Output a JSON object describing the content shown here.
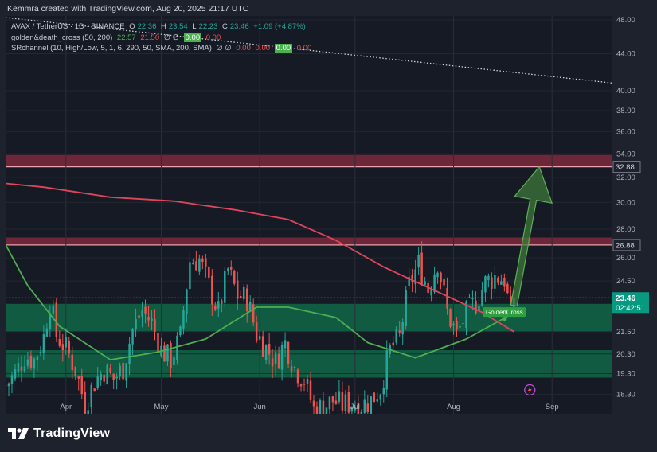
{
  "header": {
    "credit": "Kemmra created with TradingView.com, Aug 20, 2025 21:17 UTC"
  },
  "legend": {
    "symbol": "AVAX / TetherUS · 1D · BINANCE",
    "o_label": "O",
    "o_value": "22.36",
    "h_label": "H",
    "h_value": "23.54",
    "l_label": "L",
    "l_value": "22.23",
    "c_label": "C",
    "c_value": "23.46",
    "change": "+1.09 (+4.87%)",
    "gdc_label": "golden&death_cross (50, 200)",
    "gdc_v1": "22.57",
    "gdc_v2": "21.50",
    "gdc_v3": "∅ ∅",
    "gdc_v4": "0.00",
    "gdc_v5": "0.00",
    "sr_label": "SRchannel (10, High/Low, 5, 1, 6, 290, 50, SMA, 200, SMA)",
    "sr_v1": "∅ ∅",
    "sr_v2": "0.00",
    "sr_v3": "0.00",
    "sr_v4": "0.00",
    "sr_v5": "0.00"
  },
  "annotations": {
    "golden_cross": "GoldenCross",
    "price_tag_top": "32.88",
    "price_tag_mid": "26.88",
    "current_price": "23.46",
    "countdown": "02:42:51"
  },
  "brand": {
    "name": "TradingView"
  },
  "colors": {
    "up": "#26a69a",
    "down": "#ef5350",
    "ma50": "#4caf50",
    "ma200": "#e0455a",
    "zone_red": "#8b2c3f",
    "zone_green": "#0f6b4a",
    "arrow": "#3f7f3a"
  },
  "chart_data": {
    "type": "candlestick",
    "symbol": "AVAX/USDT",
    "interval": "1D",
    "y_scale": "log",
    "ylim": [
      17.4,
      48.5
    ],
    "y_ticks": [
      18.3,
      19.3,
      20.3,
      21.5,
      24.5,
      26.0,
      28.0,
      30.0,
      32.0,
      34.0,
      36.0,
      38.0,
      40.0,
      44.0,
      48.0
    ],
    "y_tick_labels": [
      "18.30",
      "19.30",
      "20.30",
      "21.50",
      "24.50",
      "26.00",
      "28.00",
      "30.00",
      "32.00",
      "34.00",
      "36.00",
      "38.00",
      "40.00",
      "44.00",
      "48.00"
    ],
    "x_range": [
      "2025-03-13",
      "2025-09-20"
    ],
    "x_ticks": [
      {
        "date": "2025-04-01",
        "label": "Apr"
      },
      {
        "date": "2025-05-01",
        "label": "May"
      },
      {
        "date": "2025-06-01",
        "label": "Jun"
      },
      {
        "date": "2025-07-01",
        "label": "Jul"
      },
      {
        "date": "2025-08-01",
        "label": "Aug"
      },
      {
        "date": "2025-09-01",
        "label": "Sep"
      }
    ],
    "closes": [
      {
        "date": "2025-03-13",
        "close": 18.7
      },
      {
        "date": "2025-03-16",
        "close": 19.3
      },
      {
        "date": "2025-03-19",
        "close": 20.2
      },
      {
        "date": "2025-03-22",
        "close": 20.0
      },
      {
        "date": "2025-03-25",
        "close": 21.2
      },
      {
        "date": "2025-03-27",
        "close": 23.3
      },
      {
        "date": "2025-03-29",
        "close": 21.3
      },
      {
        "date": "2025-04-01",
        "close": 20.6
      },
      {
        "date": "2025-04-04",
        "close": 19.5
      },
      {
        "date": "2025-04-07",
        "close": 17.8
      },
      {
        "date": "2025-04-10",
        "close": 18.9
      },
      {
        "date": "2025-04-13",
        "close": 19.5
      },
      {
        "date": "2025-04-16",
        "close": 19.0
      },
      {
        "date": "2025-04-19",
        "close": 19.6
      },
      {
        "date": "2025-04-22",
        "close": 21.6
      },
      {
        "date": "2025-04-25",
        "close": 22.7
      },
      {
        "date": "2025-04-28",
        "close": 22.0
      },
      {
        "date": "2025-05-01",
        "close": 20.5
      },
      {
        "date": "2025-05-04",
        "close": 20.0
      },
      {
        "date": "2025-05-07",
        "close": 21.2
      },
      {
        "date": "2025-05-10",
        "close": 25.8
      },
      {
        "date": "2025-05-13",
        "close": 25.9
      },
      {
        "date": "2025-05-16",
        "close": 24.2
      },
      {
        "date": "2025-05-19",
        "close": 22.6
      },
      {
        "date": "2025-05-22",
        "close": 25.2
      },
      {
        "date": "2025-05-25",
        "close": 23.6
      },
      {
        "date": "2025-05-28",
        "close": 23.4
      },
      {
        "date": "2025-05-31",
        "close": 21.4
      },
      {
        "date": "2025-06-03",
        "close": 20.6
      },
      {
        "date": "2025-06-06",
        "close": 19.9
      },
      {
        "date": "2025-06-09",
        "close": 20.9
      },
      {
        "date": "2025-06-12",
        "close": 19.6
      },
      {
        "date": "2025-06-15",
        "close": 19.0
      },
      {
        "date": "2025-06-18",
        "close": 17.6
      },
      {
        "date": "2025-06-21",
        "close": 17.7
      },
      {
        "date": "2025-06-24",
        "close": 18.0
      },
      {
        "date": "2025-06-27",
        "close": 17.8
      },
      {
        "date": "2025-06-30",
        "close": 17.9
      },
      {
        "date": "2025-07-03",
        "close": 17.8
      },
      {
        "date": "2025-07-06",
        "close": 18.0
      },
      {
        "date": "2025-07-09",
        "close": 18.6
      },
      {
        "date": "2025-07-12",
        "close": 20.5
      },
      {
        "date": "2025-07-15",
        "close": 21.2
      },
      {
        "date": "2025-07-18",
        "close": 24.2
      },
      {
        "date": "2025-07-21",
        "close": 25.6
      },
      {
        "date": "2025-07-24",
        "close": 24.0
      },
      {
        "date": "2025-07-27",
        "close": 25.8
      },
      {
        "date": "2025-07-30",
        "close": 22.6
      },
      {
        "date": "2025-08-02",
        "close": 21.3
      },
      {
        "date": "2025-08-05",
        "close": 22.5
      },
      {
        "date": "2025-08-08",
        "close": 23.2
      },
      {
        "date": "2025-08-11",
        "close": 24.4
      },
      {
        "date": "2025-08-14",
        "close": 24.8
      },
      {
        "date": "2025-08-17",
        "close": 24.6
      },
      {
        "date": "2025-08-19",
        "close": 22.4
      },
      {
        "date": "2025-08-20",
        "close": 23.46
      }
    ],
    "series": [
      {
        "name": "golden&death_cross (50, 200)",
        "type": "line",
        "points": [
          {
            "date": "2025-03-13",
            "value": 26.9
          },
          {
            "date": "2025-03-20",
            "value": 24.2
          },
          {
            "date": "2025-03-30",
            "value": 21.8
          },
          {
            "date": "2025-04-15",
            "value": 20.0
          },
          {
            "date": "2025-04-30",
            "value": 20.4
          },
          {
            "date": "2025-05-15",
            "value": 21.1
          },
          {
            "date": "2025-05-31",
            "value": 22.9
          },
          {
            "date": "2025-06-10",
            "value": 22.9
          },
          {
            "date": "2025-06-25",
            "value": 22.3
          },
          {
            "date": "2025-07-05",
            "value": 20.9
          },
          {
            "date": "2025-07-20",
            "value": 20.1
          },
          {
            "date": "2025-08-05",
            "value": 21.1
          },
          {
            "date": "2025-08-20",
            "value": 22.57
          }
        ]
      },
      {
        "name": "golden&death_cross (50, 200)",
        "type": "line",
        "points": [
          {
            "date": "2025-03-13",
            "value": 31.5
          },
          {
            "date": "2025-03-25",
            "value": 31.2
          },
          {
            "date": "2025-04-15",
            "value": 30.4
          },
          {
            "date": "2025-05-05",
            "value": 30.1
          },
          {
            "date": "2025-05-25",
            "value": 29.4
          },
          {
            "date": "2025-06-10",
            "value": 28.7
          },
          {
            "date": "2025-06-25",
            "value": 27.2
          },
          {
            "date": "2025-07-10",
            "value": 25.4
          },
          {
            "date": "2025-07-25",
            "value": 24.0
          },
          {
            "date": "2025-08-10",
            "value": 22.6
          },
          {
            "date": "2025-08-20",
            "value": 21.5
          }
        ]
      }
    ],
    "zones": [
      {
        "type": "resistance",
        "low": 32.88,
        "high": 33.9
      },
      {
        "type": "resistance",
        "low": 26.88,
        "high": 27.4
      },
      {
        "type": "support",
        "low": 21.5,
        "high": 23.1
      },
      {
        "type": "support",
        "low": 19.1,
        "high": 20.5
      }
    ],
    "trendline": [
      {
        "date": "2025-03-13",
        "value": 48.3
      },
      {
        "date": "2025-09-20",
        "value": 40.8
      }
    ],
    "projection_target": 32.88,
    "markers": [
      {
        "date": "2025-08-17",
        "value": 22.2,
        "label": "GoldenCross"
      }
    ],
    "current_price": 23.46,
    "countdown": "02:42:51"
  }
}
